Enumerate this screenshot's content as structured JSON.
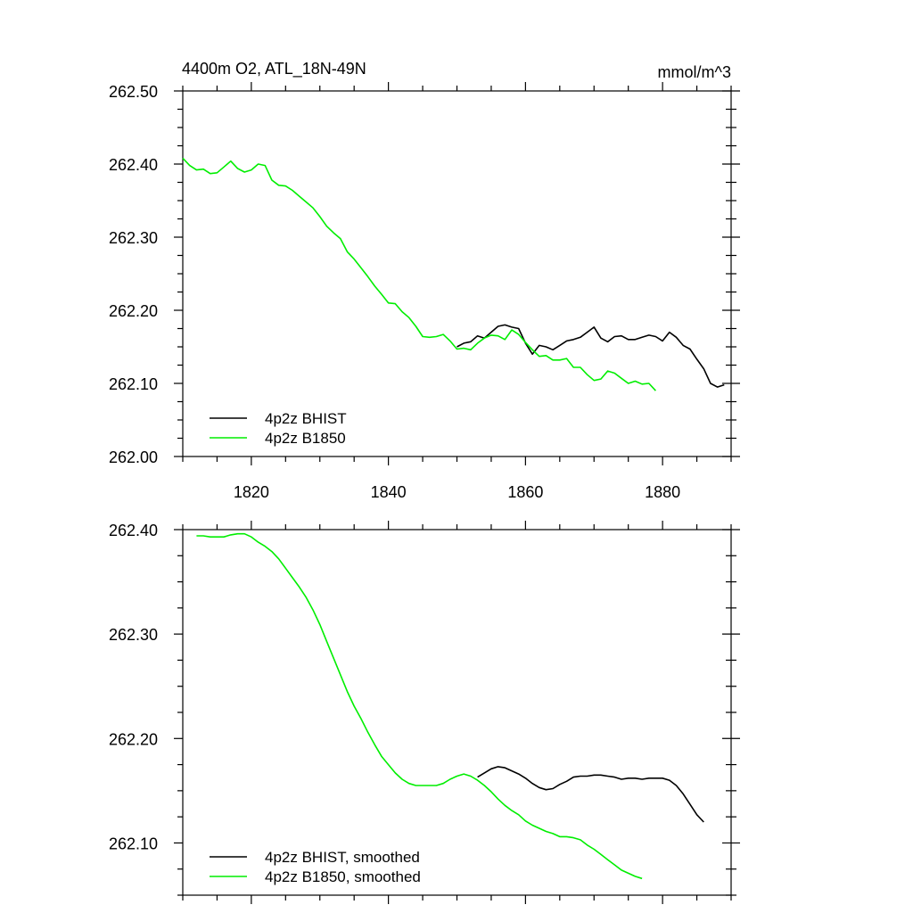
{
  "chart_data": [
    {
      "type": "line",
      "title_left": "4400m O2, ATL_18N-49N",
      "title_right": "mmol/m^3",
      "xlabel": "",
      "ylabel": "",
      "xlim": [
        1810,
        1890
      ],
      "ylim": [
        262.0,
        262.5
      ],
      "x_ticks": [
        1820,
        1840,
        1860,
        1880
      ],
      "x_tick_labels": [
        "1820",
        "1840",
        "1860",
        "1880"
      ],
      "y_ticks": [
        262.0,
        262.1,
        262.2,
        262.3,
        262.4,
        262.5
      ],
      "y_tick_labels": [
        "262.00",
        "262.10",
        "262.20",
        "262.30",
        "262.40",
        "262.50"
      ],
      "legend_position": "bottom-left",
      "series": [
        {
          "name": "4p2z BHIST",
          "color": "#000000",
          "x": [
            1850,
            1851,
            1852,
            1853,
            1854,
            1855,
            1856,
            1857,
            1858,
            1859,
            1860,
            1861,
            1862,
            1863,
            1864,
            1865,
            1866,
            1867,
            1868,
            1869,
            1870,
            1871,
            1872,
            1873,
            1874,
            1875,
            1876,
            1877,
            1878,
            1879,
            1880,
            1881,
            1882,
            1883,
            1884,
            1885,
            1886,
            1887,
            1888,
            1889
          ],
          "y": [
            262.15,
            262.155,
            262.157,
            262.165,
            262.162,
            262.17,
            262.178,
            262.18,
            262.177,
            262.175,
            262.155,
            262.14,
            262.152,
            262.15,
            262.146,
            262.152,
            262.158,
            262.16,
            262.163,
            262.17,
            262.177,
            262.162,
            262.157,
            262.164,
            262.165,
            262.16,
            262.16,
            262.163,
            262.166,
            262.164,
            262.158,
            262.17,
            262.163,
            262.152,
            262.147,
            262.133,
            262.12,
            262.1,
            262.095,
            262.098
          ]
        },
        {
          "name": "4p2z B1850",
          "color": "#00ee00",
          "x": [
            1810,
            1811,
            1812,
            1813,
            1814,
            1815,
            1816,
            1817,
            1818,
            1819,
            1820,
            1821,
            1822,
            1823,
            1824,
            1825,
            1826,
            1827,
            1828,
            1829,
            1830,
            1831,
            1832,
            1833,
            1834,
            1835,
            1836,
            1837,
            1838,
            1839,
            1840,
            1841,
            1842,
            1843,
            1844,
            1845,
            1846,
            1847,
            1848,
            1849,
            1850,
            1851,
            1852,
            1853,
            1854,
            1855,
            1856,
            1857,
            1858,
            1859,
            1860,
            1861,
            1862,
            1863,
            1864,
            1865,
            1866,
            1867,
            1868,
            1869,
            1870,
            1871,
            1872,
            1873,
            1874,
            1875,
            1876,
            1877,
            1878,
            1879
          ],
          "y": [
            262.408,
            262.398,
            262.392,
            262.393,
            262.387,
            262.388,
            262.396,
            262.404,
            262.394,
            262.389,
            262.392,
            262.4,
            262.398,
            262.378,
            262.371,
            262.37,
            262.364,
            262.356,
            262.348,
            262.34,
            262.328,
            262.315,
            262.306,
            262.298,
            262.28,
            262.27,
            262.258,
            262.246,
            262.233,
            262.222,
            262.21,
            262.209,
            262.198,
            262.19,
            262.178,
            262.164,
            262.163,
            262.164,
            262.167,
            262.158,
            262.147,
            262.148,
            262.146,
            262.155,
            262.162,
            262.166,
            262.165,
            262.16,
            262.173,
            262.167,
            262.156,
            262.146,
            262.137,
            262.138,
            262.132,
            262.132,
            262.134,
            262.122,
            262.122,
            262.112,
            262.104,
            262.106,
            262.117,
            262.114,
            262.107,
            262.1,
            262.103,
            262.099,
            262.1,
            262.09
          ]
        }
      ]
    },
    {
      "type": "line",
      "xlabel": "",
      "ylabel": "",
      "xlim": [
        1810,
        1890
      ],
      "ylim": [
        262.05,
        262.4
      ],
      "x_ticks": [
        1820,
        1840,
        1860,
        1880
      ],
      "x_tick_labels": [],
      "y_ticks": [
        262.1,
        262.2,
        262.3,
        262.4
      ],
      "y_tick_labels": [
        "262.10",
        "262.20",
        "262.30",
        "262.40"
      ],
      "legend_position": "bottom-left",
      "series": [
        {
          "name": "4p2z BHIST, smoothed",
          "color": "#000000",
          "x": [
            1853,
            1854,
            1855,
            1856,
            1857,
            1858,
            1859,
            1860,
            1861,
            1862,
            1863,
            1864,
            1865,
            1866,
            1867,
            1868,
            1869,
            1870,
            1871,
            1872,
            1873,
            1874,
            1875,
            1876,
            1877,
            1878,
            1879,
            1880,
            1881,
            1882,
            1883,
            1884,
            1885,
            1886
          ],
          "y": [
            262.163,
            262.167,
            262.171,
            262.173,
            262.172,
            262.169,
            262.166,
            262.162,
            262.157,
            262.153,
            262.151,
            262.152,
            262.156,
            262.159,
            262.163,
            262.164,
            262.164,
            262.165,
            262.165,
            262.164,
            262.163,
            262.161,
            262.162,
            262.162,
            262.161,
            262.162,
            262.162,
            262.162,
            262.16,
            262.155,
            262.147,
            262.137,
            262.127,
            262.12
          ]
        },
        {
          "name": "4p2z B1850, smoothed",
          "color": "#00ee00",
          "x": [
            1812,
            1813,
            1814,
            1815,
            1816,
            1817,
            1818,
            1819,
            1820,
            1821,
            1822,
            1823,
            1824,
            1825,
            1826,
            1827,
            1828,
            1829,
            1830,
            1831,
            1832,
            1833,
            1834,
            1835,
            1836,
            1837,
            1838,
            1839,
            1840,
            1841,
            1842,
            1843,
            1844,
            1845,
            1846,
            1847,
            1848,
            1849,
            1850,
            1851,
            1852,
            1853,
            1854,
            1855,
            1856,
            1857,
            1858,
            1859,
            1860,
            1861,
            1862,
            1863,
            1864,
            1865,
            1866,
            1867,
            1868,
            1869,
            1870,
            1871,
            1872,
            1873,
            1874,
            1875,
            1876,
            1877
          ],
          "y": [
            262.394,
            262.394,
            262.393,
            262.393,
            262.393,
            262.395,
            262.396,
            262.396,
            262.393,
            262.388,
            262.384,
            262.379,
            262.372,
            262.363,
            262.354,
            262.345,
            262.335,
            262.323,
            262.309,
            262.293,
            262.277,
            262.261,
            262.245,
            262.231,
            262.219,
            262.206,
            262.194,
            262.183,
            262.175,
            262.167,
            262.161,
            262.157,
            262.155,
            262.155,
            262.155,
            262.155,
            262.157,
            262.161,
            262.164,
            262.166,
            262.164,
            262.16,
            262.155,
            262.149,
            262.142,
            262.136,
            262.131,
            262.127,
            262.121,
            262.117,
            262.114,
            262.111,
            262.109,
            262.106,
            262.106,
            262.105,
            262.103,
            262.098,
            262.094,
            262.089,
            262.084,
            262.079,
            262.074,
            262.071,
            262.068,
            262.066
          ]
        }
      ]
    }
  ]
}
